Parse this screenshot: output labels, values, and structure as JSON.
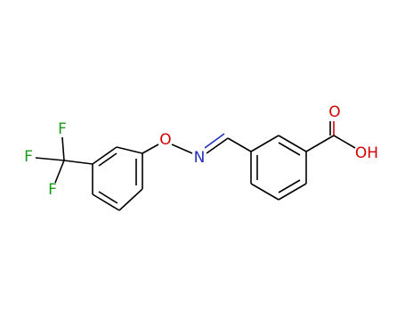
{
  "atoms": {
    "carbonyl_oxygen": "O",
    "hydroxyl": "OH",
    "imine_nitrogen": "N",
    "ether_oxygen": "O",
    "fluorines": [
      "F",
      "F",
      "F"
    ]
  }
}
